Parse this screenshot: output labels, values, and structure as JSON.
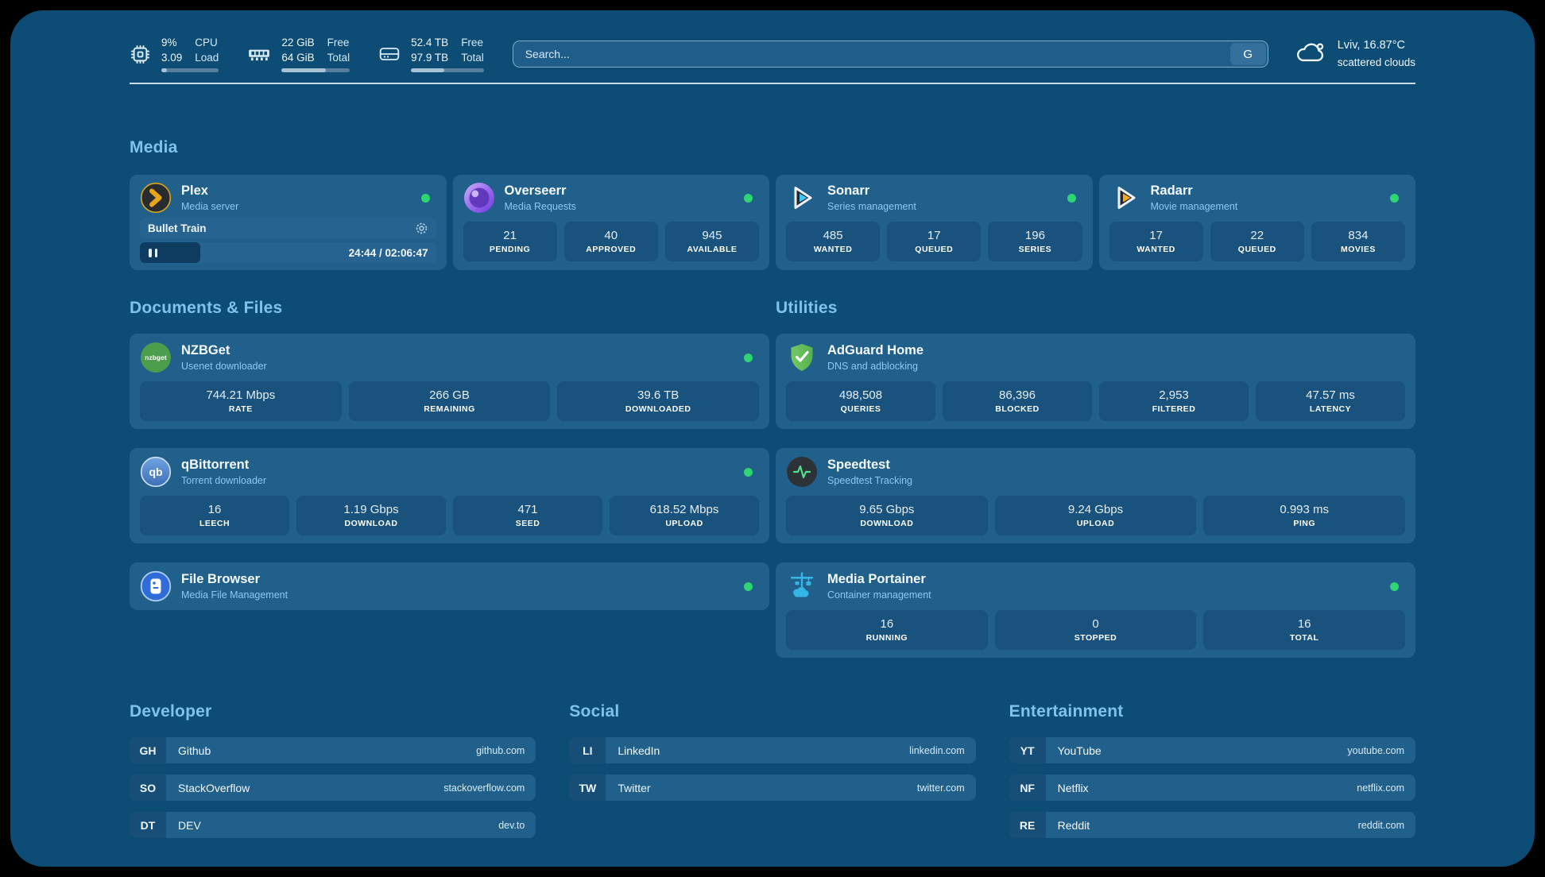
{
  "header": {
    "resources": [
      {
        "icon": "cpu-chip-icon",
        "value1": "9%",
        "value2": "3.09",
        "label1": "CPU",
        "label2": "Load",
        "pct": 9
      },
      {
        "icon": "memory-icon",
        "value1": "22 GiB",
        "value2": "64 GiB",
        "label1": "Free",
        "label2": "Total",
        "pct": 65
      },
      {
        "icon": "disk-icon",
        "value1": "52.4 TB",
        "value2": "97.9 TB",
        "label1": "Free",
        "label2": "Total",
        "pct": 46
      }
    ],
    "search": {
      "placeholder": "Search...",
      "button_label": "G"
    },
    "weather": {
      "icon": "cloud-icon",
      "location": "Lviv, 16.87°C",
      "condition": "scattered clouds"
    }
  },
  "sections": {
    "media": {
      "title": "Media",
      "plex": {
        "name": "Plex",
        "desc": "Media server",
        "now_playing": "Bullet Train",
        "time": "24:44 / 02:06:47"
      },
      "overseerr": {
        "name": "Overseerr",
        "desc": "Media Requests",
        "stats": [
          {
            "value": "21",
            "label": "PENDING"
          },
          {
            "value": "40",
            "label": "APPROVED"
          },
          {
            "value": "945",
            "label": "AVAILABLE"
          }
        ]
      },
      "sonarr": {
        "name": "Sonarr",
        "desc": "Series management",
        "stats": [
          {
            "value": "485",
            "label": "WANTED"
          },
          {
            "value": "17",
            "label": "QUEUED"
          },
          {
            "value": "196",
            "label": "SERIES"
          }
        ]
      },
      "radarr": {
        "name": "Radarr",
        "desc": "Movie management",
        "stats": [
          {
            "value": "17",
            "label": "WANTED"
          },
          {
            "value": "22",
            "label": "QUEUED"
          },
          {
            "value": "834",
            "label": "MOVIES"
          }
        ]
      }
    },
    "documents": {
      "title": "Documents & Files",
      "nzbget": {
        "name": "NZBGet",
        "desc": "Usenet downloader",
        "stats": [
          {
            "value": "744.21 Mbps",
            "label": "RATE"
          },
          {
            "value": "266 GB",
            "label": "REMAINING"
          },
          {
            "value": "39.6 TB",
            "label": "DOWNLOADED"
          }
        ]
      },
      "qbittorrent": {
        "name": "qBittorrent",
        "desc": "Torrent downloader",
        "stats": [
          {
            "value": "16",
            "label": "LEECH"
          },
          {
            "value": "1.19 Gbps",
            "label": "DOWNLOAD"
          },
          {
            "value": "471",
            "label": "SEED"
          },
          {
            "value": "618.52 Mbps",
            "label": "UPLOAD"
          }
        ]
      },
      "filebrowser": {
        "name": "File Browser",
        "desc": "Media File Management"
      }
    },
    "utilities": {
      "title": "Utilities",
      "adguard": {
        "name": "AdGuard Home",
        "desc": "DNS and adblocking",
        "stats": [
          {
            "value": "498,508",
            "label": "QUERIES"
          },
          {
            "value": "86,396",
            "label": "BLOCKED"
          },
          {
            "value": "2,953",
            "label": "FILTERED"
          },
          {
            "value": "47.57 ms",
            "label": "LATENCY"
          }
        ]
      },
      "speedtest": {
        "name": "Speedtest",
        "desc": "Speedtest Tracking",
        "stats": [
          {
            "value": "9.65 Gbps",
            "label": "DOWNLOAD"
          },
          {
            "value": "9.24 Gbps",
            "label": "UPLOAD"
          },
          {
            "value": "0.993 ms",
            "label": "PING"
          }
        ]
      },
      "portainer": {
        "name": "Media Portainer",
        "desc": "Container management",
        "stats": [
          {
            "value": "16",
            "label": "RUNNING"
          },
          {
            "value": "0",
            "label": "STOPPED"
          },
          {
            "value": "16",
            "label": "TOTAL"
          }
        ]
      }
    }
  },
  "bookmarks": {
    "developer": {
      "title": "Developer",
      "items": [
        {
          "abbr": "GH",
          "name": "Github",
          "url": "github.com"
        },
        {
          "abbr": "SO",
          "name": "StackOverflow",
          "url": "stackoverflow.com"
        },
        {
          "abbr": "DT",
          "name": "DEV",
          "url": "dev.to"
        }
      ]
    },
    "social": {
      "title": "Social",
      "items": [
        {
          "abbr": "LI",
          "name": "LinkedIn",
          "url": "linkedin.com"
        },
        {
          "abbr": "TW",
          "name": "Twitter",
          "url": "twitter.com"
        }
      ]
    },
    "entertainment": {
      "title": "Entertainment",
      "items": [
        {
          "abbr": "YT",
          "name": "YouTube",
          "url": "youtube.com"
        },
        {
          "abbr": "NF",
          "name": "Netflix",
          "url": "netflix.com"
        },
        {
          "abbr": "RE",
          "name": "Reddit",
          "url": "reddit.com"
        }
      ]
    }
  },
  "icons": {
    "nzbget_glyph": "nzbget",
    "qbittorrent_glyph": "qb",
    "status_dot_color": "#2ed573"
  },
  "colors": {
    "page_bg": "#0d4c74",
    "card_bg": "#20608b",
    "tile_bg": "#18527d",
    "heading": "#7fc2ea",
    "status_green": "#2ed573"
  }
}
